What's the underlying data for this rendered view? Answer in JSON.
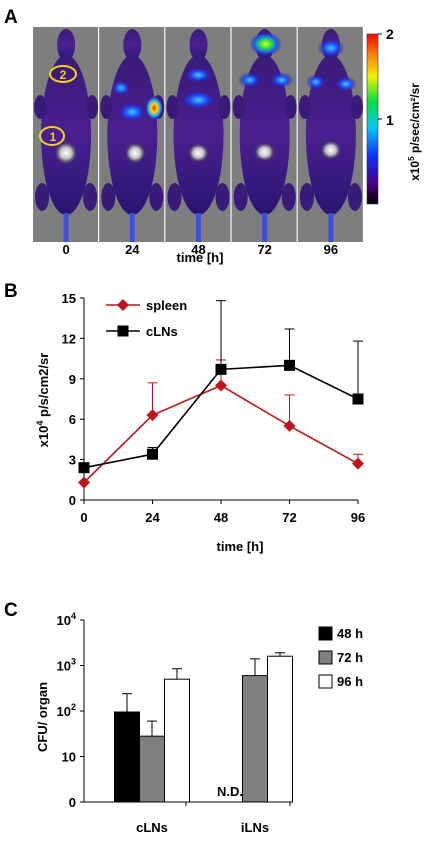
{
  "panels": {
    "a": {
      "label": "A",
      "timepoints": [
        "0",
        "24",
        "48",
        "72",
        "96"
      ],
      "xlabel": "time [h]",
      "colorbar": {
        "max": "2",
        "mid": "1",
        "label_prefix": "x10",
        "label_exp": "5",
        "label_rest": " p/sec/cm²/sr"
      },
      "roi_labels": [
        "2",
        "1"
      ],
      "roi_color": "#f2d21a"
    },
    "b": {
      "label": "B"
    },
    "c": {
      "label": "C"
    }
  },
  "chart_data": [
    {
      "type": "line",
      "title": "",
      "xlabel": "time [h]",
      "ylabel_prefix": "x10",
      "ylabel_exp": "4",
      "ylabel_rest": " p/s/cm2/sr",
      "x": [
        0,
        24,
        48,
        72,
        96
      ],
      "xlim": [
        0,
        96
      ],
      "ylim": [
        0,
        15
      ],
      "yticks": [
        0,
        3,
        6,
        9,
        12,
        15
      ],
      "legend_position": "top-left",
      "series": [
        {
          "name": "spleen",
          "values": [
            1.3,
            6.3,
            8.5,
            5.5,
            2.7
          ],
          "errors": [
            null,
            2.4,
            1.9,
            2.3,
            0.7
          ],
          "color": "#c0141c",
          "marker": "diamond"
        },
        {
          "name": "cLNs",
          "values": [
            2.4,
            3.4,
            9.7,
            10.0,
            7.5
          ],
          "errors": [
            null,
            0.5,
            5.1,
            2.7,
            4.3
          ],
          "color": "#000000",
          "marker": "square"
        }
      ]
    },
    {
      "type": "bar",
      "title": "",
      "ylabel": "CFU/ organ",
      "yscale": "log",
      "yticks": [
        {
          "value": 0,
          "label": "0"
        },
        {
          "value": 10,
          "label": "10"
        },
        {
          "value": 100,
          "base": "10",
          "exp": "2"
        },
        {
          "value": 1000,
          "base": "10",
          "exp": "3"
        },
        {
          "value": 10000,
          "base": "10",
          "exp": "4"
        }
      ],
      "categories": [
        "cLNs",
        "iLNs"
      ],
      "legend_position": "top-right",
      "annotations": [
        {
          "category": "iLNs",
          "series": "48 h",
          "text": "N.D."
        }
      ],
      "series": [
        {
          "name": "48 h",
          "color": "#000000",
          "values": [
            95,
            null
          ],
          "errors": [
            240,
            null
          ]
        },
        {
          "name": "72 h",
          "color": "#808080",
          "values": [
            28,
            600
          ],
          "errors": [
            60,
            1400
          ]
        },
        {
          "name": "96 h",
          "color": "#ffffff",
          "values": [
            500,
            1600
          ],
          "errors": [
            850,
            1900
          ]
        }
      ]
    }
  ]
}
